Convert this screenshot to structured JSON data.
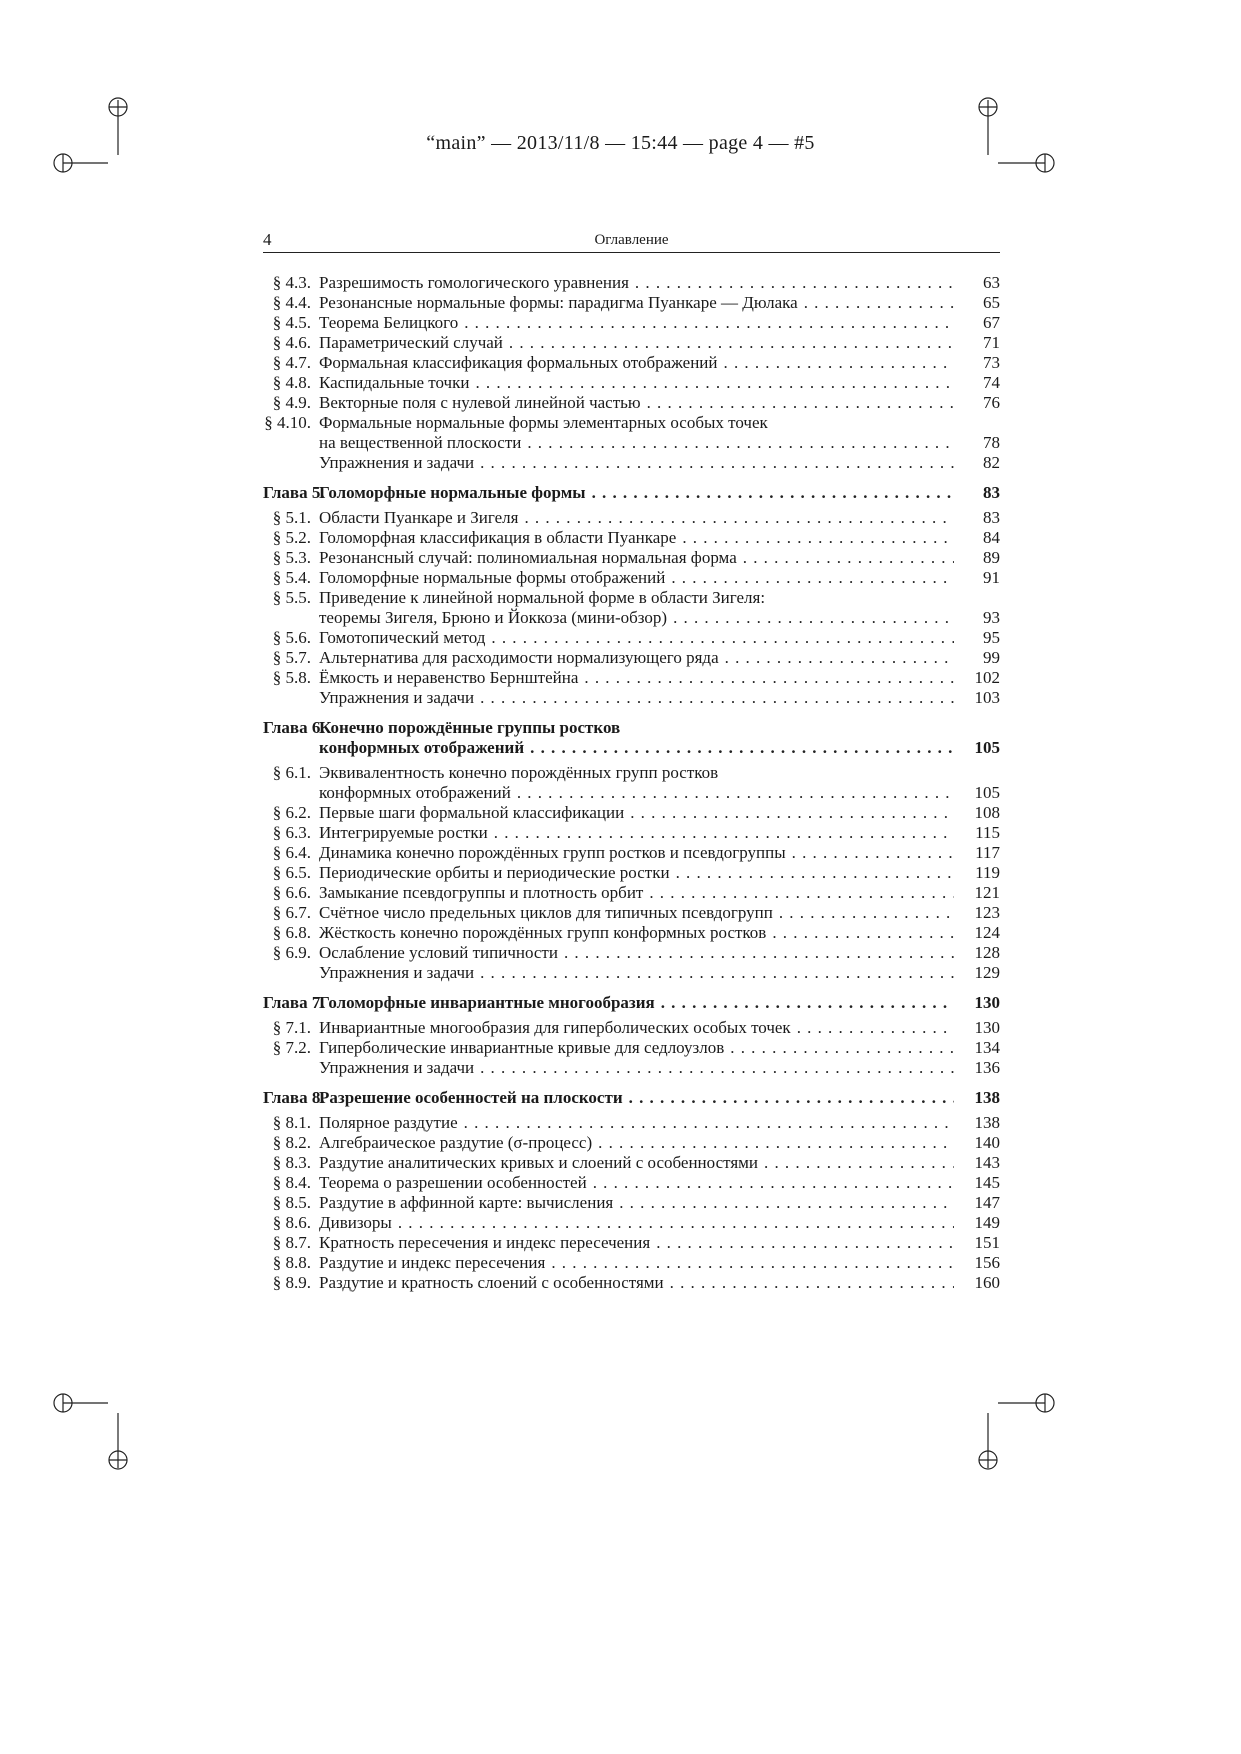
{
  "slug": "“main” — 2013/11/8 — 15:44 — page 4 — #5",
  "running_head": {
    "page_number": "4",
    "title": "Оглавление"
  },
  "entries": [
    {
      "num": "§ 4.3.",
      "lines": [
        "Разрешимость гомологического уравнения"
      ],
      "page": "63"
    },
    {
      "num": "§ 4.4.",
      "lines": [
        "Резонансные нормальные формы: парадигма Пуанкаре — Дюлака"
      ],
      "page": "65"
    },
    {
      "num": "§ 4.5.",
      "lines": [
        "Теорема Белицкого"
      ],
      "page": "67"
    },
    {
      "num": "§ 4.6.",
      "lines": [
        "Параметрический случай"
      ],
      "page": "71"
    },
    {
      "num": "§ 4.7.",
      "lines": [
        "Формальная классификация формальных отображений"
      ],
      "page": "73"
    },
    {
      "num": "§ 4.8.",
      "lines": [
        "Каспидальные точки"
      ],
      "page": "74"
    },
    {
      "num": "§ 4.9.",
      "lines": [
        "Векторные поля с нулевой линейной частью"
      ],
      "page": "76"
    },
    {
      "num": "§ 4.10.",
      "lines": [
        "Формальные нормальные формы элементарных особых точек",
        "на вещественной плоскости"
      ],
      "page": "78"
    },
    {
      "num": "",
      "lines": [
        "Упражнения и задачи"
      ],
      "page": "82"
    },
    {
      "num": "Глава 5.",
      "lines": [
        "Голоморфные нормальные формы"
      ],
      "page": "83",
      "chapter": true
    },
    {
      "num": "§ 5.1.",
      "lines": [
        "Области Пуанкаре и Зигеля"
      ],
      "page": "83"
    },
    {
      "num": "§ 5.2.",
      "lines": [
        "Голоморфная классификация в области Пуанкаре"
      ],
      "page": "84"
    },
    {
      "num": "§ 5.3.",
      "lines": [
        "Резонансный случай: полиномиальная нормальная форма"
      ],
      "page": "89"
    },
    {
      "num": "§ 5.4.",
      "lines": [
        "Голоморфные нормальные формы отображений"
      ],
      "page": "91"
    },
    {
      "num": "§ 5.5.",
      "lines": [
        "Приведение к линейной нормальной форме в области Зигеля:",
        "теоремы Зигеля, Брюно и Йоккоза (мини-обзор)"
      ],
      "page": "93"
    },
    {
      "num": "§ 5.6.",
      "lines": [
        "Гомотопический метод"
      ],
      "page": "95"
    },
    {
      "num": "§ 5.7.",
      "lines": [
        "Альтернатива для расходимости нормализующего ряда"
      ],
      "page": "99"
    },
    {
      "num": "§ 5.8.",
      "lines": [
        "Ёмкость и неравенство Бернштейна"
      ],
      "page": "102"
    },
    {
      "num": "",
      "lines": [
        "Упражнения и задачи"
      ],
      "page": "103"
    },
    {
      "num": "Глава 6.",
      "lines": [
        "Конечно порождённые группы ростков",
        "конформных отображений"
      ],
      "page": "105",
      "chapter": true
    },
    {
      "num": "§ 6.1.",
      "lines": [
        "Эквивалентность конечно порождённых групп ростков",
        "конформных отображений"
      ],
      "page": "105"
    },
    {
      "num": "§ 6.2.",
      "lines": [
        "Первые шаги формальной классификации"
      ],
      "page": "108"
    },
    {
      "num": "§ 6.3.",
      "lines": [
        "Интегрируемые ростки"
      ],
      "page": "115"
    },
    {
      "num": "§ 6.4.",
      "lines": [
        "Динамика конечно порождённых групп ростков и псевдогруппы"
      ],
      "page": "117"
    },
    {
      "num": "§ 6.5.",
      "lines": [
        "Периодические орбиты и периодические ростки"
      ],
      "page": "119"
    },
    {
      "num": "§ 6.6.",
      "lines": [
        "Замыкание псевдогруппы и плотность орбит"
      ],
      "page": "121"
    },
    {
      "num": "§ 6.7.",
      "lines": [
        "Счётное число предельных циклов для типичных псевдогрупп"
      ],
      "page": "123"
    },
    {
      "num": "§ 6.8.",
      "lines": [
        "Жёсткость конечно порождённых групп конформных ростков"
      ],
      "page": "124"
    },
    {
      "num": "§ 6.9.",
      "lines": [
        "Ослабление условий типичности"
      ],
      "page": "128"
    },
    {
      "num": "",
      "lines": [
        "Упражнения и задачи"
      ],
      "page": "129"
    },
    {
      "num": "Глава 7.",
      "lines": [
        "Голоморфные инвариантные многообразия"
      ],
      "page": "130",
      "chapter": true
    },
    {
      "num": "§ 7.1.",
      "lines": [
        "Инвариантные многообразия для гиперболических особых точек"
      ],
      "page": "130"
    },
    {
      "num": "§ 7.2.",
      "lines": [
        "Гиперболические инвариантные кривые для седлоузлов"
      ],
      "page": "134"
    },
    {
      "num": "",
      "lines": [
        "Упражнения и задачи"
      ],
      "page": "136"
    },
    {
      "num": "Глава 8.",
      "lines": [
        "Разрешение особенностей на плоскости"
      ],
      "page": "138",
      "chapter": true
    },
    {
      "num": "§ 8.1.",
      "lines": [
        "Полярное раздутие"
      ],
      "page": "138"
    },
    {
      "num": "§ 8.2.",
      "lines": [
        "Алгебраическое раздутие (σ-процесс)"
      ],
      "page": "140"
    },
    {
      "num": "§ 8.3.",
      "lines": [
        "Раздутие аналитических кривых и слоений с особенностями"
      ],
      "page": "143"
    },
    {
      "num": "§ 8.4.",
      "lines": [
        "Теорема о разрешении особенностей"
      ],
      "page": "145"
    },
    {
      "num": "§ 8.5.",
      "lines": [
        "Раздутие в аффинной карте: вычисления"
      ],
      "page": "147"
    },
    {
      "num": "§ 8.6.",
      "lines": [
        "Дивизоры"
      ],
      "page": "149"
    },
    {
      "num": "§ 8.7.",
      "lines": [
        "Кратность пересечения и индекс пересечения"
      ],
      "page": "151"
    },
    {
      "num": "§ 8.8.",
      "lines": [
        "Раздутие и индекс пересечения"
      ],
      "page": "156"
    },
    {
      "num": "§ 8.9.",
      "lines": [
        "Раздутие и кратность слоений с особенностями"
      ],
      "page": "160"
    }
  ]
}
